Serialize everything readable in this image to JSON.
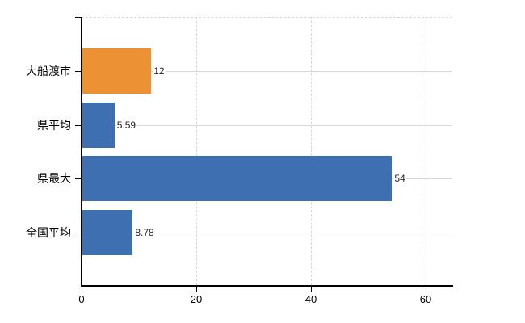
{
  "chart_data": {
    "type": "bar",
    "orientation": "horizontal",
    "categories": [
      "大船渡市",
      "県平均",
      "県最大",
      "全国平均"
    ],
    "values": [
      12,
      5.59,
      54,
      8.78
    ],
    "value_labels": [
      "12",
      "5.59",
      "54",
      "8.78"
    ],
    "bar_colors": [
      "#EC9134",
      "#3D6FB1",
      "#3D6FB1",
      "#3D6FB1"
    ],
    "x_tick_values": [
      0,
      20,
      40,
      60
    ],
    "x_tick_labels": [
      "0",
      "20",
      "40",
      "60"
    ],
    "xlim": [
      0,
      64.6
    ],
    "xlabel": "",
    "ylabel": "",
    "legend_position": "none",
    "grid": {
      "vertical_gridlines": "dashed",
      "horizontal_category_lines": "solid",
      "top_border": "dashed"
    },
    "colors": {
      "background": "#ffffff",
      "axis": "#000000",
      "vertical_gridline": "#d9d9d9",
      "category_line": "#d2dad2",
      "category_label": "#000000",
      "value_label": "#262626",
      "x_tick_label": "#000000"
    }
  }
}
